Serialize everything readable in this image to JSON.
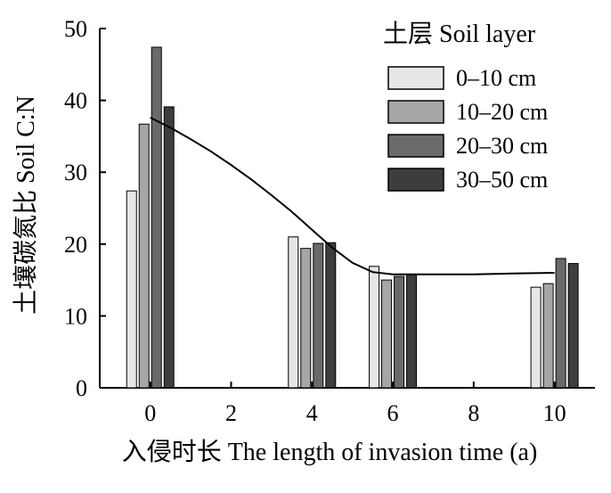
{
  "chart_data": {
    "type": "bar",
    "xlabel": "入侵时长 The length of invasion time (a)",
    "ylabel": "土壤碳氮比 Soil C:N",
    "xlim": [
      -1.25,
      11.0
    ],
    "ylim": [
      0,
      50
    ],
    "x_ticks": [
      0,
      2,
      4,
      6,
      8,
      10
    ],
    "y_ticks": [
      0,
      10,
      20,
      30,
      40,
      50
    ],
    "x": [
      0,
      4,
      6,
      10
    ],
    "legend": {
      "title": "土层 Soil layer",
      "placement": "top-right"
    },
    "series": [
      {
        "name": "0–10 cm",
        "color": "#e6e6e6",
        "values": [
          27.4,
          21.0,
          16.9,
          14.0
        ]
      },
      {
        "name": "10–20 cm",
        "color": "#a6a6a6",
        "values": [
          36.7,
          19.4,
          15.0,
          14.5
        ]
      },
      {
        "name": "20–30 cm",
        "color": "#6a6a6a",
        "values": [
          47.4,
          20.1,
          15.5,
          18.0
        ]
      },
      {
        "name": "30–50 cm",
        "color": "#3d3d3d",
        "values": [
          39.1,
          20.2,
          15.8,
          17.3
        ]
      }
    ],
    "trend_line": {
      "x": [
        0,
        0.5,
        1,
        1.5,
        2,
        2.5,
        3,
        3.5,
        4,
        4.5,
        5,
        5.5,
        6,
        7,
        8,
        9,
        10
      ],
      "y": [
        37.6,
        36.2,
        34.6,
        32.9,
        31.0,
        29.0,
        26.8,
        24.5,
        22.0,
        19.5,
        17.4,
        16.1,
        15.8,
        15.8,
        15.8,
        15.9,
        16.0
      ]
    },
    "grid": false
  }
}
